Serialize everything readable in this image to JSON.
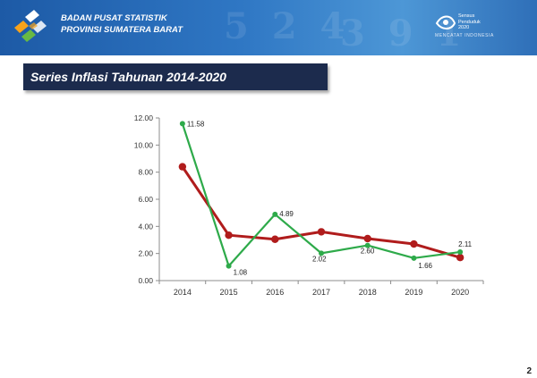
{
  "header": {
    "org_line1": "BADAN PUSAT STATISTIK",
    "org_line2": "PROVINSI SUMATERA BARAT",
    "census_line1": "Sensus",
    "census_line2": "Penduduk",
    "census_line3": "2020",
    "census_sub": "MENCATAT INDONESIA"
  },
  "slide": {
    "title": "Series Inflasi Tahunan 2014-2020",
    "page_number": "2"
  },
  "colors": {
    "green_series": "#2eaa4a",
    "red_series": "#b01c1c",
    "title_bg": "#1c2b4d",
    "banner": "#2f77c4"
  },
  "chart_data": {
    "type": "line",
    "categories": [
      "2014",
      "2015",
      "2016",
      "2017",
      "2018",
      "2019",
      "2020"
    ],
    "ylim": [
      0,
      12
    ],
    "yticks": [
      "0.00",
      "2.00",
      "4.00",
      "6.00",
      "8.00",
      "10.00",
      "12.00"
    ],
    "grid": false,
    "series": [
      {
        "color": "#2eaa4a",
        "values": [
          11.58,
          1.08,
          4.89,
          2.02,
          2.6,
          1.66,
          2.11
        ],
        "labels": [
          "11.58",
          "1.08",
          "4.89",
          "2.02",
          "2.60",
          "1.66",
          "2.11"
        ]
      },
      {
        "color": "#b01c1c",
        "values": [
          8.4,
          3.35,
          3.05,
          3.6,
          3.1,
          2.7,
          1.7
        ]
      }
    ]
  }
}
